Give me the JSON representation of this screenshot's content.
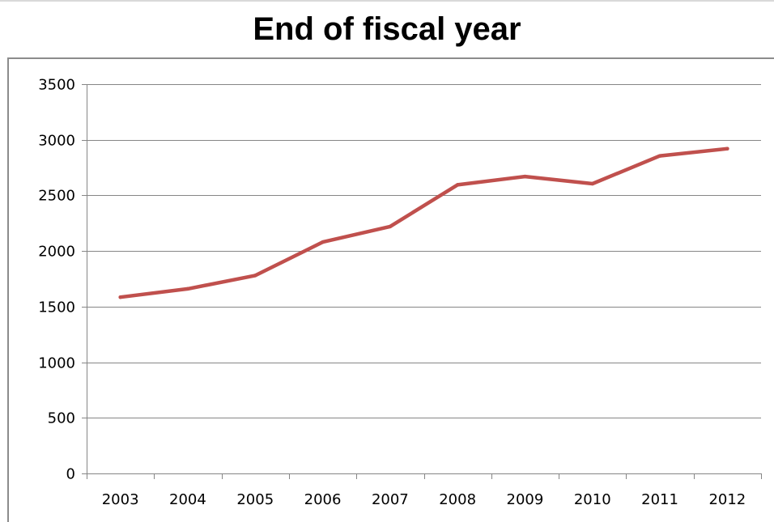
{
  "chart_data": {
    "type": "line",
    "title": "End of fiscal year",
    "xlabel": "",
    "ylabel": "",
    "categories": [
      "2003",
      "2004",
      "2005",
      "2006",
      "2007",
      "2008",
      "2009",
      "2010",
      "2011",
      "2012"
    ],
    "series": [
      {
        "values": [
          1585,
          1660,
          1780,
          2080,
          2220,
          2595,
          2670,
          2605,
          2855,
          2920
        ]
      }
    ],
    "ylim": [
      0,
      3500
    ],
    "yticks": [
      0,
      500,
      1000,
      1500,
      2000,
      2500,
      3000,
      3500
    ],
    "grid": "horizontal",
    "legend": "none",
    "colors": {
      "line": "#c0504d",
      "grid": "#868686",
      "axis": "#868686"
    }
  }
}
